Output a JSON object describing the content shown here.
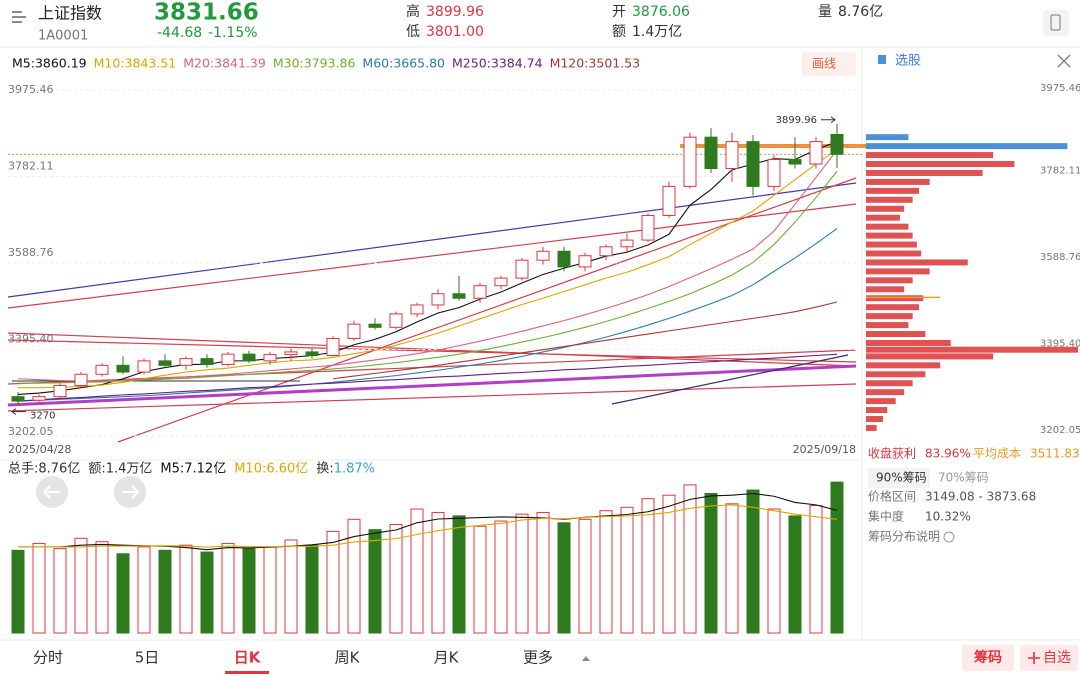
{
  "header": {
    "name": "上证指数",
    "code": "1A0001",
    "price": 3831.66,
    "change": "-44.68",
    "pct": "-1.15%",
    "high_label": "高",
    "high": "3899.96",
    "low_label": "低",
    "low": "3801.00",
    "open_label": "开",
    "open": "3876.06",
    "amount_label": "额",
    "amount": "1.4万亿",
    "volume_label": "量",
    "volume": "8.76亿"
  },
  "draw_button": "画线",
  "chart_data": {
    "type": "candlestick",
    "start_date": "2025/04/28",
    "end_date": "2025/09/18",
    "ylim": [
      3202.05,
      3975.46
    ],
    "yticks": [
      3975.46,
      3782.11,
      3588.76,
      {
        "value": 3395.4,
        "label": "3395.40"
      },
      3202.05
    ],
    "up_color": "#e3343f",
    "down_color": "#2f7a1f",
    "ohlc": [
      [
        3290,
        3300,
        3270,
        3280
      ],
      [
        3282,
        3295,
        3277.55,
        3290
      ],
      [
        3290,
        3320,
        3285,
        3315
      ],
      [
        3315,
        3345,
        3310,
        3340
      ],
      [
        3340,
        3365,
        3335,
        3360
      ],
      [
        3360,
        3380,
        3340,
        3345
      ],
      [
        3345,
        3375,
        3340,
        3370
      ],
      [
        3370,
        3385,
        3355,
        3360
      ],
      [
        3360,
        3380,
        3350,
        3375
      ],
      [
        3375,
        3385,
        3355,
        3362
      ],
      [
        3362,
        3390,
        3358,
        3385
      ],
      [
        3385,
        3392,
        3365,
        3370
      ],
      [
        3370,
        3390,
        3362,
        3384
      ],
      [
        3384,
        3398,
        3370,
        3390
      ],
      [
        3390,
        3400,
        3375,
        3382
      ],
      [
        3382,
        3425,
        3380,
        3420
      ],
      [
        3420,
        3460,
        3415,
        3452
      ],
      [
        3452,
        3465,
        3440,
        3445
      ],
      [
        3445,
        3480,
        3440,
        3475
      ],
      [
        3475,
        3500,
        3468,
        3495
      ],
      [
        3495,
        3530,
        3485,
        3520
      ],
      [
        3520,
        3560,
        3505,
        3510
      ],
      [
        3510,
        3545,
        3500,
        3538
      ],
      [
        3538,
        3560,
        3530,
        3555
      ],
      [
        3555,
        3600,
        3550,
        3595
      ],
      [
        3595,
        3625,
        3585,
        3615
      ],
      [
        3615,
        3625,
        3570,
        3580
      ],
      [
        3580,
        3612,
        3570,
        3605
      ],
      [
        3605,
        3630,
        3595,
        3625
      ],
      [
        3625,
        3655,
        3610,
        3640
      ],
      [
        3640,
        3700,
        3635,
        3695
      ],
      [
        3695,
        3770,
        3690,
        3760
      ],
      [
        3760,
        3880,
        3755,
        3870
      ],
      [
        3870,
        3890,
        3790,
        3800
      ],
      [
        3800,
        3880,
        3770,
        3860
      ],
      [
        3860,
        3875,
        3740,
        3760
      ],
      [
        3760,
        3830,
        3750,
        3820
      ],
      [
        3820,
        3870,
        3800,
        3810
      ],
      [
        3810,
        3870,
        3800,
        3860
      ],
      [
        3876.06,
        3899.96,
        3801.0,
        3831.66
      ]
    ],
    "ma_series": [
      {
        "name": "M5",
        "label": "M5:3860.19",
        "color": "#111111",
        "values": [
          3295,
          3298,
          3303,
          3310,
          3317,
          3330,
          3346,
          3355,
          3362,
          3362,
          3370,
          3370,
          3375,
          3378,
          3382,
          3389,
          3406,
          3418,
          3435,
          3457,
          3477,
          3489,
          3508,
          3524,
          3544,
          3563,
          3577,
          3590,
          3604,
          3613,
          3629,
          3653,
          3718,
          3753,
          3797,
          3810,
          3822,
          3820,
          3842,
          3860.19
        ]
      },
      {
        "name": "M10",
        "label": "M10:3843.51",
        "color": "#e2a400",
        "values": [
          3310,
          3310,
          3311,
          3313,
          3316,
          3322,
          3330,
          3338,
          3345,
          3350,
          3354,
          3360,
          3366,
          3370,
          3372,
          3378,
          3386,
          3394,
          3405,
          3418,
          3432,
          3448,
          3464,
          3480,
          3496,
          3510,
          3525,
          3540,
          3555,
          3568,
          3585,
          3603,
          3630,
          3655,
          3680,
          3705,
          3740,
          3775,
          3810,
          3843.51
        ]
      },
      {
        "name": "M20",
        "label": "M20:3841.39",
        "color": "#e0607e",
        "values": [
          3330,
          3328,
          3326,
          3325,
          3325,
          3326,
          3328,
          3331,
          3334,
          3337,
          3340,
          3344,
          3348,
          3352,
          3356,
          3360,
          3366,
          3372,
          3379,
          3386,
          3394,
          3404,
          3414,
          3425,
          3436,
          3448,
          3460,
          3473,
          3487,
          3502,
          3518,
          3536,
          3556,
          3576,
          3597,
          3620,
          3660,
          3720,
          3780,
          3841.39
        ]
      },
      {
        "name": "M30",
        "label": "M30:3793.86",
        "color": "#6cb033",
        "values": [
          3320,
          3320,
          3321,
          3322,
          3323,
          3325,
          3327,
          3329,
          3331,
          3334,
          3337,
          3340,
          3343,
          3346,
          3349,
          3352,
          3356,
          3361,
          3366,
          3372,
          3378,
          3385,
          3393,
          3402,
          3412,
          3422,
          3433,
          3445,
          3458,
          3472,
          3487,
          3503,
          3520,
          3540,
          3562,
          3590,
          3630,
          3680,
          3735,
          3793.86
        ]
      },
      {
        "name": "M60",
        "label": "M60:3665.80",
        "color": "#2b7bb5",
        "values": [
          3280,
          3282,
          3284,
          3286,
          3288,
          3290,
          3292,
          3295,
          3298,
          3301,
          3304,
          3307,
          3310,
          3314,
          3318,
          3322,
          3327,
          3332,
          3337,
          3343,
          3349,
          3356,
          3363,
          3371,
          3380,
          3390,
          3400,
          3411,
          3423,
          3436,
          3450,
          3465,
          3481,
          3498,
          3516,
          3540,
          3570,
          3600,
          3632,
          3665.8
        ]
      },
      {
        "name": "M250",
        "label": "M250:3384.74",
        "color": "#6a1f7a",
        "values": [
          3280,
          3283,
          3286,
          3288,
          3291,
          3294,
          3296,
          3299,
          3302,
          3304,
          3307,
          3310,
          3312,
          3315,
          3318,
          3320,
          3323,
          3326,
          3328,
          3331,
          3334,
          3336,
          3339,
          3342,
          3344,
          3347,
          3350,
          3352,
          3355,
          3358,
          3360,
          3363,
          3366,
          3368,
          3371,
          3374,
          3376,
          3379,
          3382,
          3384.74
        ]
      },
      {
        "name": "M120",
        "label": "M120:3501.53",
        "color": "#a8392c",
        "values": [
          null,
          null,
          null,
          null,
          null,
          null,
          null,
          null,
          null,
          null,
          null,
          null,
          null,
          null,
          null,
          3330,
          3336,
          3342,
          3348,
          3354,
          3360,
          3367,
          3374,
          3381,
          3388,
          3395,
          3402,
          3409,
          3416,
          3423,
          3430,
          3437,
          3444,
          3451,
          3458,
          3465,
          3472,
          3480,
          3490,
          3501.53
        ]
      }
    ],
    "volume": {
      "ylim": [
        0,
        9
      ],
      "values": [
        4.8,
        5.2,
        4.9,
        5.5,
        5.3,
        4.6,
        5.0,
        4.8,
        5.1,
        4.7,
        5.2,
        4.9,
        5.0,
        5.4,
        5.1,
        5.9,
        6.6,
        6.0,
        6.3,
        7.2,
        7.0,
        6.8,
        6.2,
        6.5,
        6.9,
        7.0,
        6.4,
        6.6,
        7.1,
        7.3,
        7.8,
        8.0,
        8.6,
        8.1,
        7.5,
        8.3,
        7.2,
        6.8,
        7.4,
        8.76
      ],
      "legend": [
        "总手:8.76亿",
        "额:1.4万亿"
      ],
      "turnover_label": "换:",
      "turnover": "1.87%",
      "ma_series": [
        {
          "name": "M5",
          "label": "M5:7.12亿",
          "color": "#111111",
          "values": [
            5.0,
            5.0,
            5.0,
            5.1,
            5.14,
            5.1,
            5.06,
            5.04,
            4.96,
            4.84,
            4.96,
            4.94,
            4.98,
            5.04,
            5.12,
            5.26,
            5.6,
            5.8,
            5.98,
            6.4,
            6.62,
            6.66,
            6.7,
            6.74,
            6.72,
            6.68,
            6.6,
            6.72,
            6.8,
            6.88,
            7.04,
            7.36,
            7.76,
            7.96,
            8.0,
            8.1,
            7.94,
            7.58,
            7.44,
            7.12
          ]
        },
        {
          "name": "M10",
          "label": "M10:6.60亿",
          "color": "#e2a400",
          "values": [
            5.0,
            5.0,
            5.0,
            5.0,
            5.05,
            5.05,
            5.05,
            5.07,
            5.05,
            4.99,
            5.05,
            5.02,
            5.01,
            5.04,
            5.03,
            5.1,
            5.28,
            5.37,
            5.48,
            5.72,
            5.94,
            6.13,
            6.25,
            6.36,
            6.56,
            6.65,
            6.63,
            6.71,
            6.76,
            6.8,
            6.86,
            7.0,
            7.24,
            7.38,
            7.44,
            7.3,
            7.1,
            6.9,
            6.75,
            6.6
          ]
        }
      ]
    }
  },
  "chips": {
    "title": "选股",
    "prices": [
      3870,
      3850,
      3830,
      3810,
      3790,
      3770,
      3750,
      3730,
      3710,
      3690,
      3670,
      3650,
      3630,
      3610,
      3590,
      3570,
      3550,
      3530,
      3510,
      3490,
      3470,
      3450,
      3430,
      3410,
      3395,
      3380,
      3360,
      3340,
      3320,
      3300,
      3280,
      3260,
      3240,
      3220
    ],
    "values": [
      20,
      95,
      60,
      70,
      55,
      30,
      25,
      22,
      18,
      16,
      20,
      22,
      24,
      26,
      48,
      30,
      22,
      18,
      27,
      25,
      22,
      20,
      28,
      40,
      100,
      60,
      35,
      28,
      22,
      18,
      14,
      10,
      8,
      5
    ],
    "above_color": "#4a90d9",
    "below_color": "#e05252",
    "avg_color": "#f0a020",
    "profit_label": "收盘获利",
    "profit": "83.96%",
    "avg_label": "平均成本",
    "avg": 3511.83,
    "tabs": [
      "90%筹码",
      "70%筹码"
    ],
    "range_label": "价格区间",
    "range": "3149.08 - 3873.68",
    "conc_label": "集中度",
    "conc": "10.32%",
    "help": "筹码分布说明"
  },
  "tabs": [
    "分时",
    "5日",
    "日K",
    "周K",
    "月K",
    "更多"
  ],
  "buttons": [
    "筹码",
    "自选"
  ]
}
